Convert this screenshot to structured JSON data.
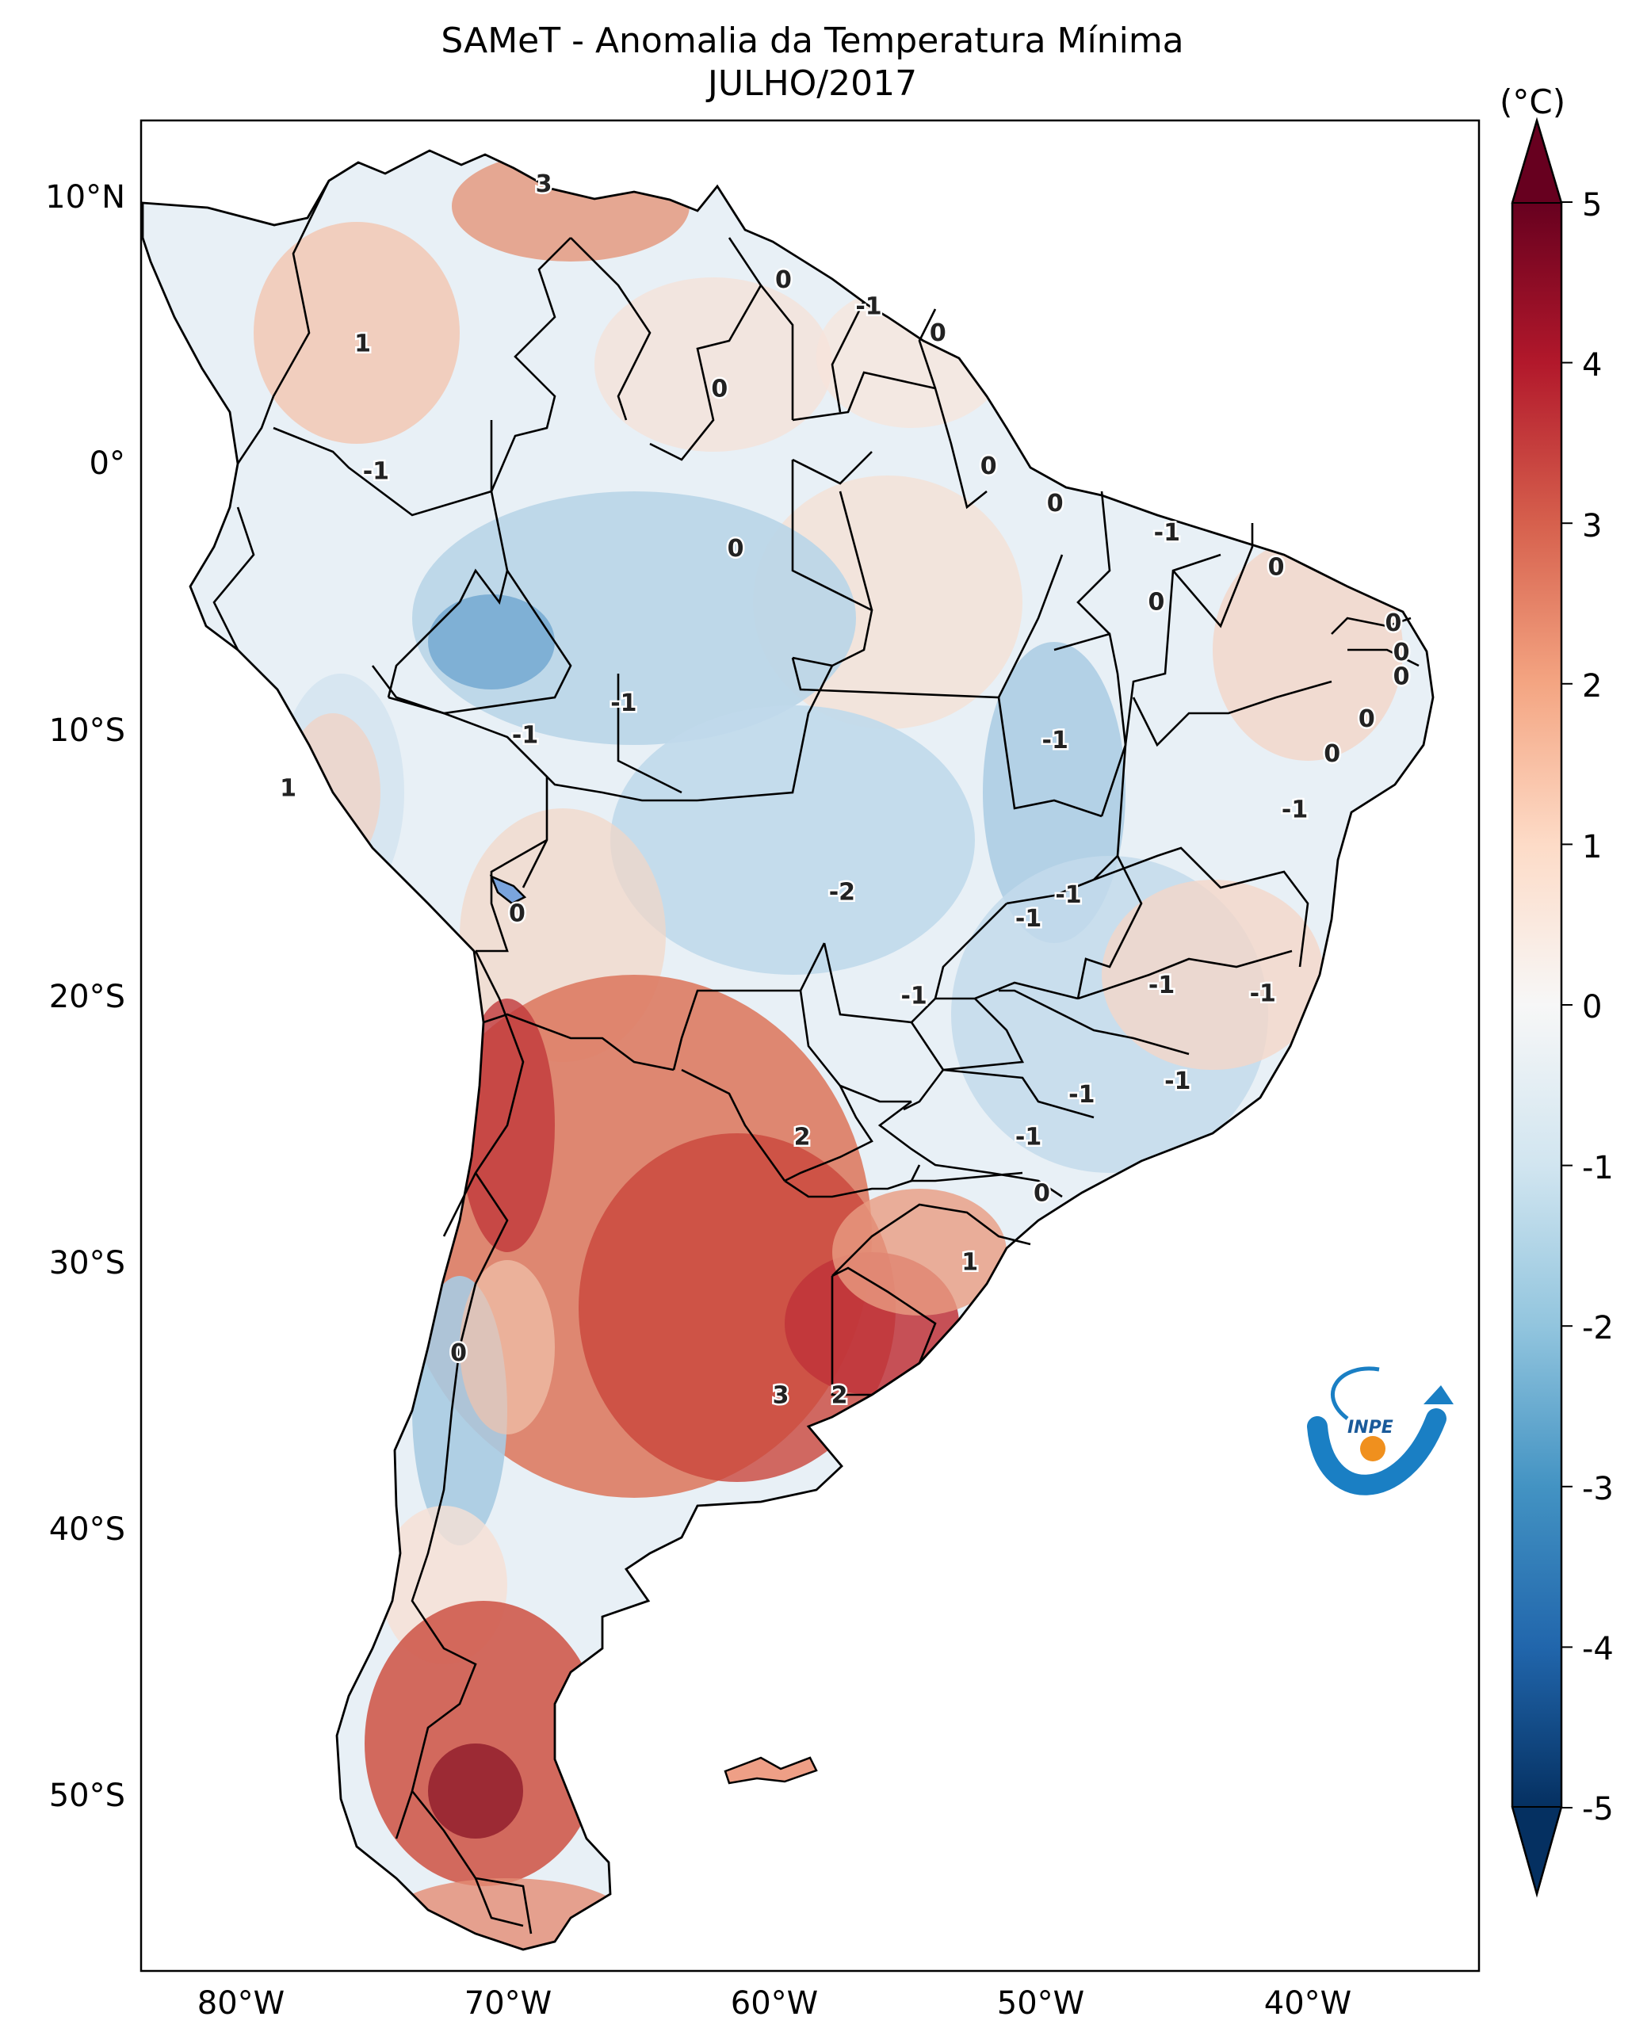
{
  "figure": {
    "title_line1": "SAMeT - Anomalia da Temperatura Mínima",
    "title_line2": "JULHO/2017",
    "lat_labels": [
      "10°N",
      "0°",
      "10°S",
      "20°S",
      "30°S",
      "40°S",
      "50°S"
    ],
    "lon_labels": [
      "80°W",
      "70°W",
      "60°W",
      "50°W",
      "40°W"
    ],
    "colorbar": {
      "unit": "(°C)",
      "ticks": [
        "5",
        "4",
        "3",
        "2",
        "1",
        "0",
        "-1",
        "-2",
        "-3",
        "-4",
        "-5"
      ],
      "colors": [
        "#67001f",
        "#b2182b",
        "#d6604d",
        "#f4a582",
        "#fddbc7",
        "#f7f7f7",
        "#d1e5f0",
        "#92c5de",
        "#4393c3",
        "#2166ac",
        "#053061"
      ]
    },
    "logo_text": "INPE"
  },
  "contour_labels": [
    {
      "text": "3",
      "lon": -67.2,
      "lat": 10.6
    },
    {
      "text": "0",
      "lon": -58.2,
      "lat": 7.0
    },
    {
      "text": "-1",
      "lon": -55.0,
      "lat": 6.0
    },
    {
      "text": "0",
      "lon": -52.4,
      "lat": 5.0
    },
    {
      "text": "1",
      "lon": -74.0,
      "lat": 4.6
    },
    {
      "text": "0",
      "lon": -60.6,
      "lat": 2.9
    },
    {
      "text": "0",
      "lon": -50.5,
      "lat": 0.0
    },
    {
      "text": "0",
      "lon": -48.0,
      "lat": -1.4
    },
    {
      "text": "-1",
      "lon": -73.5,
      "lat": -0.2
    },
    {
      "text": "-1",
      "lon": -43.8,
      "lat": -2.5
    },
    {
      "text": "0",
      "lon": -60.0,
      "lat": -3.1
    },
    {
      "text": "0",
      "lon": -39.7,
      "lat": -3.8
    },
    {
      "text": "0",
      "lon": -44.2,
      "lat": -5.1
    },
    {
      "text": "0",
      "lon": -35.3,
      "lat": -5.9
    },
    {
      "text": "0",
      "lon": -35.0,
      "lat": -7.0
    },
    {
      "text": "0",
      "lon": -35.0,
      "lat": -7.9
    },
    {
      "text": "-1",
      "lon": -64.2,
      "lat": -8.9
    },
    {
      "text": "0",
      "lon": -36.3,
      "lat": -9.5
    },
    {
      "text": "-1",
      "lon": -67.9,
      "lat": -10.1
    },
    {
      "text": "-1",
      "lon": -48.0,
      "lat": -10.3
    },
    {
      "text": "0",
      "lon": -37.6,
      "lat": -10.8
    },
    {
      "text": "1",
      "lon": -76.8,
      "lat": -12.1
    },
    {
      "text": "-1",
      "lon": -39.0,
      "lat": -12.9
    },
    {
      "text": "-2",
      "lon": -56.0,
      "lat": -16.0
    },
    {
      "text": "-1",
      "lon": -47.5,
      "lat": -16.1
    },
    {
      "text": "-1",
      "lon": -49.0,
      "lat": -17.0
    },
    {
      "text": "0",
      "lon": -68.2,
      "lat": -16.8
    },
    {
      "text": "-1",
      "lon": -44.0,
      "lat": -19.5
    },
    {
      "text": "-1",
      "lon": -53.3,
      "lat": -19.9
    },
    {
      "text": "-1",
      "lon": -40.2,
      "lat": -19.8
    },
    {
      "text": "-1",
      "lon": -43.4,
      "lat": -23.1
    },
    {
      "text": "-1",
      "lon": -47.0,
      "lat": -23.6
    },
    {
      "text": "2",
      "lon": -57.5,
      "lat": -25.2
    },
    {
      "text": "-1",
      "lon": -49.0,
      "lat": -25.2
    },
    {
      "text": "0",
      "lon": -48.5,
      "lat": -27.3
    },
    {
      "text": "1",
      "lon": -51.2,
      "lat": -29.9
    },
    {
      "text": "0",
      "lon": -70.4,
      "lat": -33.3
    },
    {
      "text": "3",
      "lon": -58.3,
      "lat": -34.9
    },
    {
      "text": "2",
      "lon": -56.1,
      "lat": -34.9
    }
  ]
}
